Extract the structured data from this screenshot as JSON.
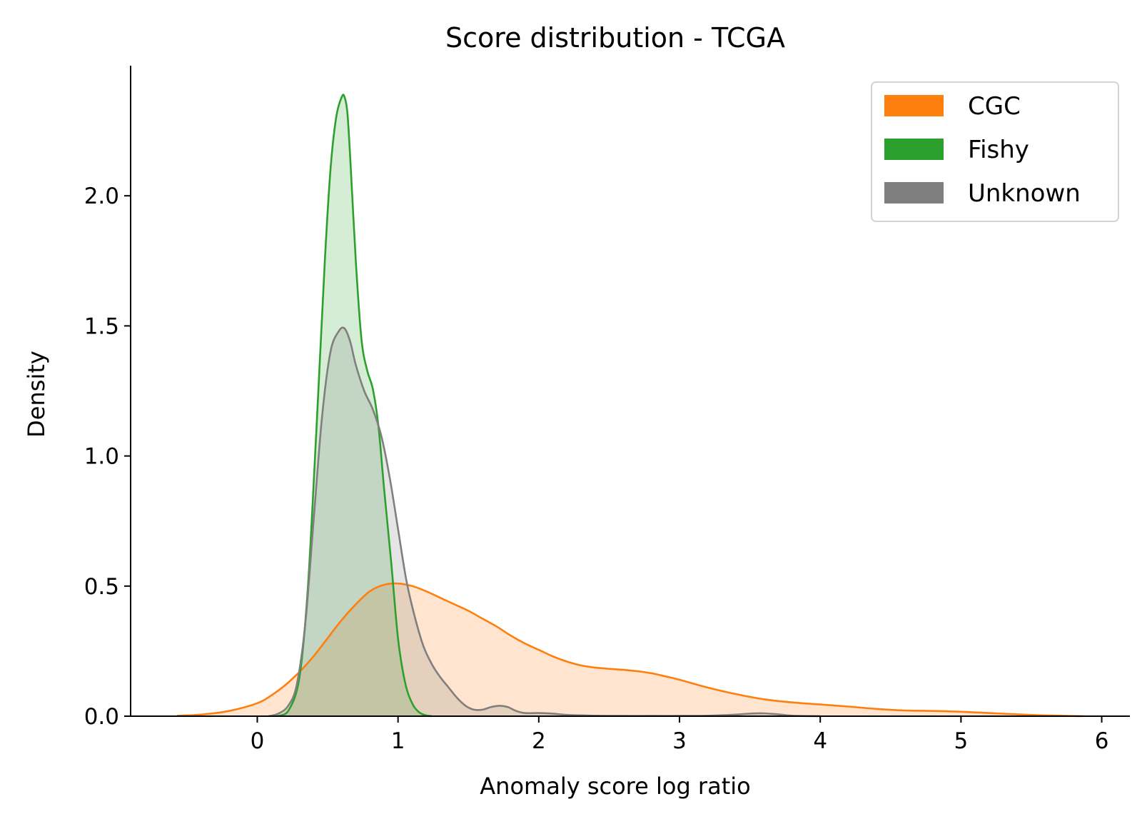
{
  "chart_data": {
    "type": "area",
    "title": "Score distribution - TCGA",
    "xlabel": "Anomaly score log ratio",
    "ylabel": "Density",
    "xlim": [
      -0.9,
      6.2
    ],
    "ylim": [
      0,
      2.5
    ],
    "xticks": [
      "0",
      "1",
      "2",
      "3",
      "4",
      "5",
      "6"
    ],
    "yticks": [
      "0.0",
      "0.5",
      "1.0",
      "1.5",
      "2.0"
    ],
    "grid": false,
    "legend_position": "top-right",
    "series": [
      {
        "name": "CGC",
        "color": "#ff7f0e",
        "x": [
          -0.57,
          -0.4,
          -0.2,
          0.0,
          0.1,
          0.2,
          0.3,
          0.4,
          0.5,
          0.6,
          0.7,
          0.8,
          0.9,
          1.0,
          1.1,
          1.2,
          1.3,
          1.4,
          1.5,
          1.6,
          1.7,
          1.8,
          1.9,
          2.0,
          2.1,
          2.2,
          2.3,
          2.4,
          2.5,
          2.6,
          2.7,
          2.8,
          2.9,
          3.0,
          3.2,
          3.4,
          3.6,
          3.8,
          4.0,
          4.2,
          4.4,
          4.6,
          4.8,
          5.0,
          5.2,
          5.4,
          5.6,
          5.87
        ],
        "y": [
          0.002,
          0.006,
          0.02,
          0.05,
          0.08,
          0.12,
          0.17,
          0.23,
          0.3,
          0.37,
          0.43,
          0.48,
          0.505,
          0.51,
          0.5,
          0.48,
          0.455,
          0.43,
          0.405,
          0.375,
          0.345,
          0.31,
          0.28,
          0.255,
          0.23,
          0.21,
          0.195,
          0.187,
          0.182,
          0.178,
          0.173,
          0.165,
          0.153,
          0.14,
          0.11,
          0.085,
          0.065,
          0.053,
          0.045,
          0.037,
          0.028,
          0.022,
          0.02,
          0.017,
          0.012,
          0.007,
          0.003,
          0.0
        ]
      },
      {
        "name": "Fishy",
        "color": "#2ca02c",
        "x": [
          0.14,
          0.22,
          0.3,
          0.36,
          0.42,
          0.48,
          0.52,
          0.56,
          0.6,
          0.62,
          0.64,
          0.66,
          0.7,
          0.74,
          0.78,
          0.82,
          0.86,
          0.9,
          0.95,
          1.0,
          1.05,
          1.1,
          1.15,
          1.2,
          1.24
        ],
        "y": [
          0.0,
          0.02,
          0.15,
          0.5,
          1.1,
          1.75,
          2.1,
          2.3,
          2.38,
          2.38,
          2.32,
          2.15,
          1.75,
          1.45,
          1.33,
          1.26,
          1.12,
          0.88,
          0.6,
          0.3,
          0.13,
          0.05,
          0.015,
          0.003,
          0.0
        ]
      },
      {
        "name": "Unknown",
        "color": "#7f7f7f",
        "x": [
          0.08,
          0.15,
          0.22,
          0.28,
          0.34,
          0.4,
          0.46,
          0.52,
          0.58,
          0.62,
          0.66,
          0.7,
          0.76,
          0.82,
          0.88,
          0.94,
          1.0,
          1.06,
          1.12,
          1.18,
          1.24,
          1.3,
          1.36,
          1.42,
          1.48,
          1.54,
          1.6,
          1.66,
          1.72,
          1.78,
          1.84,
          1.9,
          2.0,
          2.1,
          2.2,
          2.4,
          2.6,
          2.8,
          3.0,
          3.2,
          3.4,
          3.5,
          3.6,
          3.7,
          3.8,
          4.0
        ],
        "y": [
          0.0,
          0.01,
          0.04,
          0.12,
          0.35,
          0.75,
          1.15,
          1.4,
          1.48,
          1.49,
          1.44,
          1.35,
          1.25,
          1.18,
          1.08,
          0.92,
          0.72,
          0.52,
          0.38,
          0.27,
          0.2,
          0.15,
          0.11,
          0.07,
          0.04,
          0.025,
          0.025,
          0.035,
          0.04,
          0.035,
          0.02,
          0.012,
          0.012,
          0.01,
          0.005,
          0.002,
          0.001,
          0.001,
          0.001,
          0.002,
          0.006,
          0.01,
          0.011,
          0.007,
          0.002,
          0.0
        ]
      }
    ]
  }
}
